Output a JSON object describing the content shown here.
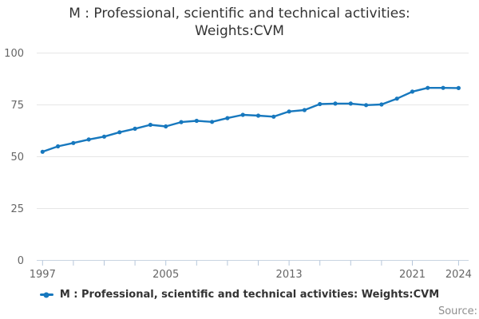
{
  "chart": {
    "title": "M : Professional, scientific and technical activities: Weights:CVM"
  },
  "legend": {
    "label": "M : Professional, scientific and technical activities: Weights:CVM"
  },
  "footer": {
    "source": "Source:"
  },
  "colors": {
    "line": "#1778be",
    "grid": "#e6e6e6",
    "axis_line": "#c9d4e2",
    "tick": "#b6c6da",
    "title_text": "#333333",
    "axis_label": "#666666",
    "source_text": "#8e8e8e"
  },
  "chart_data": {
    "type": "line",
    "title": "M : Professional, scientific and technical activities: Weights:CVM",
    "xlabel": "",
    "ylabel": "",
    "ylim": [
      0,
      100
    ],
    "yticks": [
      0,
      25,
      50,
      75,
      100
    ],
    "xtick_marks": [
      1997,
      1999,
      2001,
      2003,
      2005,
      2007,
      2009,
      2011,
      2013,
      2015,
      2017,
      2019,
      2021,
      2024
    ],
    "xtick_labels": [
      1997,
      2005,
      2013,
      2021,
      2024
    ],
    "grid": "horizontal",
    "legend_position": "bottom",
    "marker": "circle",
    "x": [
      1997,
      1998,
      1999,
      2000,
      2001,
      2002,
      2003,
      2004,
      2005,
      2006,
      2007,
      2008,
      2009,
      2010,
      2011,
      2012,
      2013,
      2014,
      2015,
      2016,
      2017,
      2018,
      2019,
      2020,
      2021,
      2022,
      2023,
      2024
    ],
    "series": [
      {
        "name": "M : Professional, scientific and technical activities: Weights:CVM",
        "color": "#1778be",
        "values": [
          52.4,
          55.0,
          56.6,
          58.3,
          59.7,
          61.8,
          63.5,
          65.4,
          64.6,
          66.7,
          67.3,
          66.8,
          68.6,
          70.2,
          69.8,
          69.3,
          71.8,
          72.5,
          75.4,
          75.6,
          75.6,
          74.9,
          75.2,
          78.0,
          81.4,
          83.2,
          83.2,
          83.1
        ]
      }
    ]
  }
}
